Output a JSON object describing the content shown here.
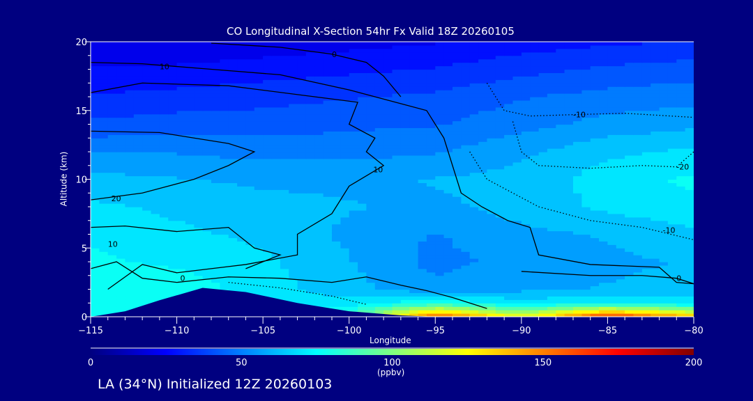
{
  "chart_data": {
    "type": "heatmap",
    "title": "CO Longitudinal X-Section 54hr  Fx Valid 18Z 20260105",
    "xlabel": "Longitude",
    "ylabel": "Altitude (km)",
    "xlim": [
      -115,
      -80
    ],
    "ylim": [
      0,
      20
    ],
    "xticks": [
      "-115",
      "-110",
      "-105",
      "-100",
      "-95",
      "-90",
      "-85",
      "-80"
    ],
    "yticks": [
      "0",
      "5",
      "10",
      "15",
      "20"
    ],
    "grid": false,
    "lon": [
      -115,
      -110,
      -105,
      -100,
      -95,
      -90,
      -85,
      -80
    ],
    "alt": [
      0,
      1,
      2,
      4,
      6,
      8,
      10,
      12,
      14,
      16,
      18,
      20
    ],
    "values_ppbv": [
      [
        75,
        70,
        70,
        90,
        160,
        120,
        170,
        140
      ],
      [
        78,
        75,
        72,
        70,
        80,
        70,
        75,
        70
      ],
      [
        80,
        78,
        70,
        62,
        55,
        58,
        60,
        62
      ],
      [
        75,
        72,
        68,
        60,
        50,
        55,
        58,
        60
      ],
      [
        72,
        68,
        65,
        58,
        52,
        58,
        60,
        65
      ],
      [
        68,
        65,
        62,
        60,
        58,
        62,
        68,
        72
      ],
      [
        62,
        60,
        58,
        58,
        60,
        62,
        70,
        75
      ],
      [
        52,
        52,
        50,
        50,
        52,
        58,
        65,
        68
      ],
      [
        40,
        42,
        42,
        44,
        45,
        50,
        55,
        58
      ],
      [
        32,
        34,
        36,
        38,
        40,
        45,
        48,
        50
      ],
      [
        25,
        26,
        28,
        30,
        32,
        36,
        40,
        42
      ],
      [
        18,
        18,
        20,
        22,
        24,
        28,
        30,
        32
      ]
    ],
    "terrain": [
      [
        -115,
        0
      ],
      [
        -113,
        0.4
      ],
      [
        -111,
        1.2
      ],
      [
        -108.5,
        2.1
      ],
      [
        -106,
        1.8
      ],
      [
        -103,
        1.0
      ],
      [
        -100,
        0.4
      ],
      [
        -97,
        0.1
      ],
      [
        -95,
        0
      ],
      [
        -80,
        0
      ]
    ],
    "contours": [
      {
        "label": "0",
        "style": "solid",
        "label_at": [
          -101,
          19.1
        ],
        "points": [
          [
            -108,
            19.9
          ],
          [
            -104,
            19.6
          ],
          [
            -101,
            19.1
          ],
          [
            -99,
            18.5
          ],
          [
            -98,
            17.5
          ],
          [
            -97,
            16
          ]
        ]
      },
      {
        "label": "10",
        "style": "solid",
        "label_at": [
          -111,
          18.2
        ],
        "points": [
          [
            -115,
            18.5
          ],
          [
            -112,
            18.4
          ],
          [
            -108,
            18
          ],
          [
            -104,
            17.6
          ],
          [
            -100,
            16.5
          ],
          [
            -97,
            15.5
          ],
          [
            -95.5,
            15
          ],
          [
            -94.5,
            13
          ],
          [
            -94,
            11
          ],
          [
            -93.5,
            9
          ],
          [
            -92.3,
            8
          ],
          [
            -90.8,
            7
          ],
          [
            -89.5,
            6.5
          ],
          [
            -89,
            4.5
          ],
          [
            -86,
            3.8
          ],
          [
            -82,
            3.6
          ],
          [
            -81,
            2.5
          ],
          [
            -80,
            2.4
          ]
        ]
      },
      {
        "label": "10",
        "style": "solid",
        "label_at": [
          -98.6,
          10.7
        ],
        "points": [
          [
            -115,
            16.3
          ],
          [
            -112,
            17
          ],
          [
            -107,
            16.8
          ],
          [
            -102,
            16
          ],
          [
            -99.5,
            15.6
          ],
          [
            -100,
            14
          ],
          [
            -98.5,
            13
          ],
          [
            -99,
            12
          ],
          [
            -98,
            11
          ],
          [
            -100,
            9.5
          ],
          [
            -101,
            7.5
          ],
          [
            -103,
            6
          ],
          [
            -103,
            4.5
          ],
          [
            -106,
            3.8
          ],
          [
            -110,
            3.2
          ],
          [
            -112,
            3.8
          ],
          [
            -114,
            2
          ]
        ]
      },
      {
        "label": "20",
        "style": "solid",
        "label_at": [
          -113.8,
          8.6
        ],
        "points": [
          [
            -115,
            13.5
          ],
          [
            -111,
            13.4
          ],
          [
            -107,
            12.6
          ],
          [
            -105.5,
            12
          ],
          [
            -107,
            11
          ],
          [
            -109,
            10
          ],
          [
            -112,
            9
          ],
          [
            -115,
            8.5
          ]
        ]
      },
      {
        "label": "10",
        "style": "solid",
        "label_at": [
          -114,
          5.3
        ],
        "points": [
          [
            -115,
            6.5
          ],
          [
            -113,
            6.6
          ],
          [
            -110,
            6.2
          ],
          [
            -107,
            6.5
          ],
          [
            -105.5,
            5
          ],
          [
            -104,
            4.5
          ],
          [
            -106,
            3.5
          ]
        ]
      },
      {
        "label": "0",
        "style": "solid",
        "label_at": [
          -109.8,
          2.8
        ],
        "points": [
          [
            -115,
            3.5
          ],
          [
            -113.5,
            4
          ],
          [
            -112,
            2.8
          ],
          [
            -110,
            2.5
          ],
          [
            -107,
            2.9
          ],
          [
            -104,
            2.8
          ],
          [
            -101,
            2.5
          ],
          [
            -99,
            2.9
          ],
          [
            -97,
            2.3
          ],
          [
            -95.5,
            1.9
          ],
          [
            -94,
            1.4
          ],
          [
            -92,
            0.6
          ]
        ]
      },
      {
        "label": "0",
        "style": "solid",
        "label_at": [
          -81,
          2.8
        ],
        "points": [
          [
            -90,
            3.3
          ],
          [
            -86,
            3.0
          ],
          [
            -83,
            3.0
          ],
          [
            -81,
            2.8
          ],
          [
            -80,
            2.4
          ]
        ]
      },
      {
        "label": "-10",
        "style": "dotted",
        "label_at": [
          -87,
          14.7
        ],
        "points": [
          [
            -92,
            17
          ],
          [
            -91,
            15
          ],
          [
            -89.5,
            14.6
          ],
          [
            -87,
            14.7
          ],
          [
            -84,
            14.8
          ],
          [
            -80,
            14.5
          ]
        ]
      },
      {
        "label": "-20",
        "style": "dotted",
        "label_at": [
          -81,
          10.9
        ],
        "points": [
          [
            -90.5,
            14.2
          ],
          [
            -90,
            12
          ],
          [
            -89,
            11
          ],
          [
            -86,
            10.8
          ],
          [
            -83,
            11
          ],
          [
            -81,
            10.9
          ],
          [
            -80,
            12
          ]
        ]
      },
      {
        "label": "-10",
        "style": "dotted",
        "label_at": [
          -81.8,
          6.3
        ],
        "points": [
          [
            -93,
            12
          ],
          [
            -92,
            10
          ],
          [
            -89,
            8
          ],
          [
            -86,
            7
          ],
          [
            -83,
            6.5
          ],
          [
            -80,
            5.6
          ]
        ]
      },
      {
        "label": "",
        "style": "dotted",
        "label_at": [
          -105,
          2.3
        ],
        "points": [
          [
            -107,
            2.5
          ],
          [
            -104,
            2.1
          ],
          [
            -101,
            1.5
          ],
          [
            -99,
            0.9
          ]
        ]
      }
    ],
    "colorbar": {
      "ticks": [
        "0",
        "50",
        "100",
        "150",
        "200"
      ],
      "range": [
        0,
        200
      ],
      "units": "(ppbv)",
      "colors": [
        "#000080",
        "#0000ff",
        "#0080ff",
        "#00ffff",
        "#80ff80",
        "#ffff00",
        "#ff8000",
        "#ff0000",
        "#800000"
      ]
    }
  },
  "footer": "LA (34°N) Initialized 12Z 20260103"
}
